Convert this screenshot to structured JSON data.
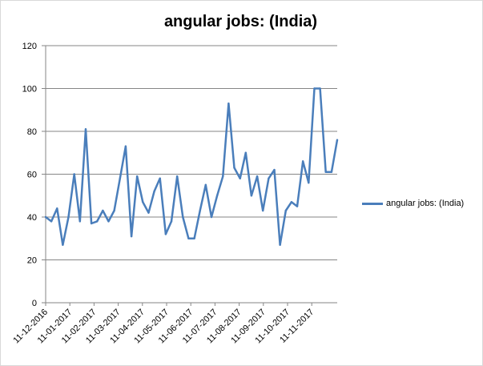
{
  "chart_data": {
    "type": "line",
    "title": "angular jobs: (India)",
    "xlabel": "",
    "ylabel": "",
    "ylim": [
      0,
      120
    ],
    "y_ticks": [
      0,
      20,
      40,
      60,
      80,
      100,
      120
    ],
    "x_tick_labels": [
      "11-12-2016",
      "11-01-2017",
      "11-02-2017",
      "11-03-2017",
      "11-04-2017",
      "11-05-2017",
      "11-06-2017",
      "11-07-2017",
      "11-08-2017",
      "11-09-2017",
      "11-10-2017",
      "11-11-2017"
    ],
    "grid": "horizontal",
    "legend_position": "right",
    "series": [
      {
        "name": "angular jobs: (India)",
        "color": "#4a7ebb",
        "values": [
          40,
          38,
          44,
          27,
          40,
          60,
          38,
          81,
          37,
          38,
          43,
          38,
          43,
          58,
          73,
          31,
          59,
          47,
          42,
          52,
          58,
          32,
          38,
          59,
          40,
          30,
          30,
          43,
          55,
          40,
          50,
          59,
          93,
          63,
          58,
          70,
          50,
          59,
          43,
          58,
          62,
          27,
          43,
          47,
          45,
          66,
          56,
          100,
          100,
          61,
          61,
          76
        ]
      }
    ]
  }
}
